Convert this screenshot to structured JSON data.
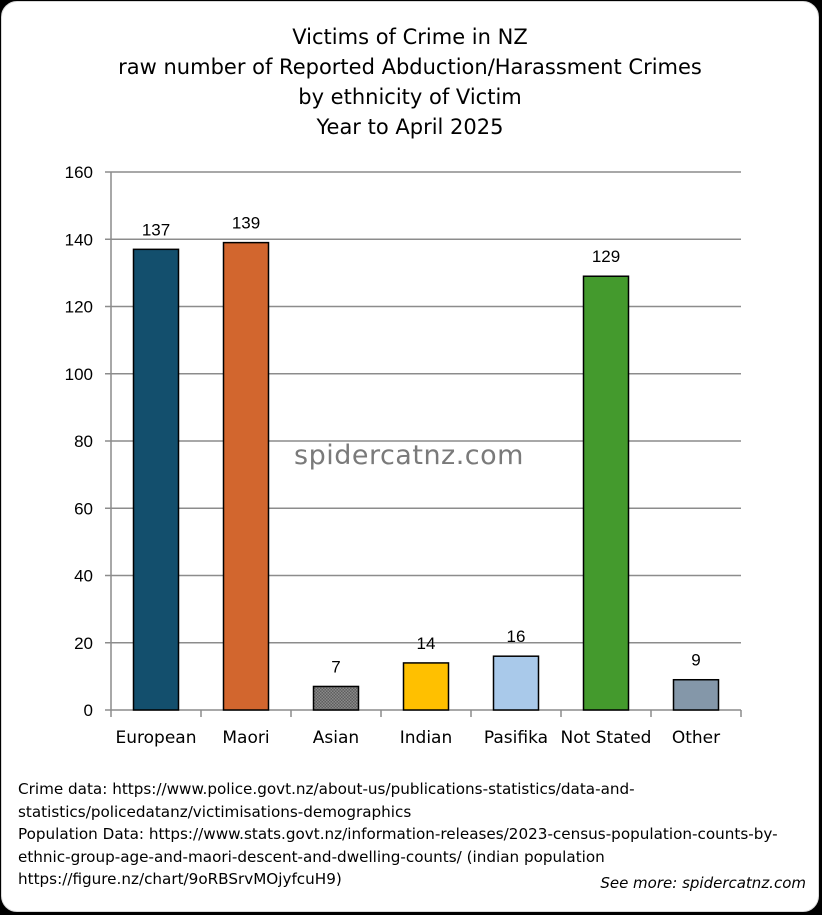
{
  "title_lines": [
    "Victims of Crime in NZ",
    "raw number of Reported Abduction/Harassment Crimes",
    "by ethnicity of Victim",
    "Year to April 2025"
  ],
  "watermark": "spidercatnz.com",
  "footer_lines": [
    "Crime data: https://www.police.govt.nz/about-us/publications-statistics/data-and-",
    "statistics/policedatanz/victimisations-demographics",
    "Population Data: https://www.stats.govt.nz/information-releases/2023-census-population-counts-by-",
    "ethnic-group-age-and-maori-descent-and-dwelling-counts/ (indian population",
    "https://figure.nz/chart/9oRBSrvMOjyfcuH9)"
  ],
  "see_more": "See more: spidercatnz.com",
  "chart_data": {
    "type": "bar",
    "title": "Victims of Crime in NZ raw number of Reported Abduction/Harassment Crimes by ethnicity of Victim Year to April 2025",
    "categories": [
      "European",
      "Maori",
      "Asian",
      "Indian",
      "Pasifika",
      "Not Stated",
      "Other"
    ],
    "values": [
      137,
      139,
      7,
      14,
      16,
      129,
      9
    ],
    "colors": [
      "#134f6d",
      "#d2662e",
      "#707070",
      "#ffc000",
      "#a9c9ea",
      "#449a2d",
      "#8497a9"
    ],
    "data_labels": [
      "137",
      "139",
      "7",
      "14",
      "16",
      "129",
      "9"
    ],
    "ylim": [
      0,
      160
    ],
    "yticks": [
      0,
      20,
      40,
      60,
      80,
      100,
      120,
      140,
      160
    ],
    "grid": true,
    "legend": "none",
    "xlabel": "",
    "ylabel": ""
  }
}
